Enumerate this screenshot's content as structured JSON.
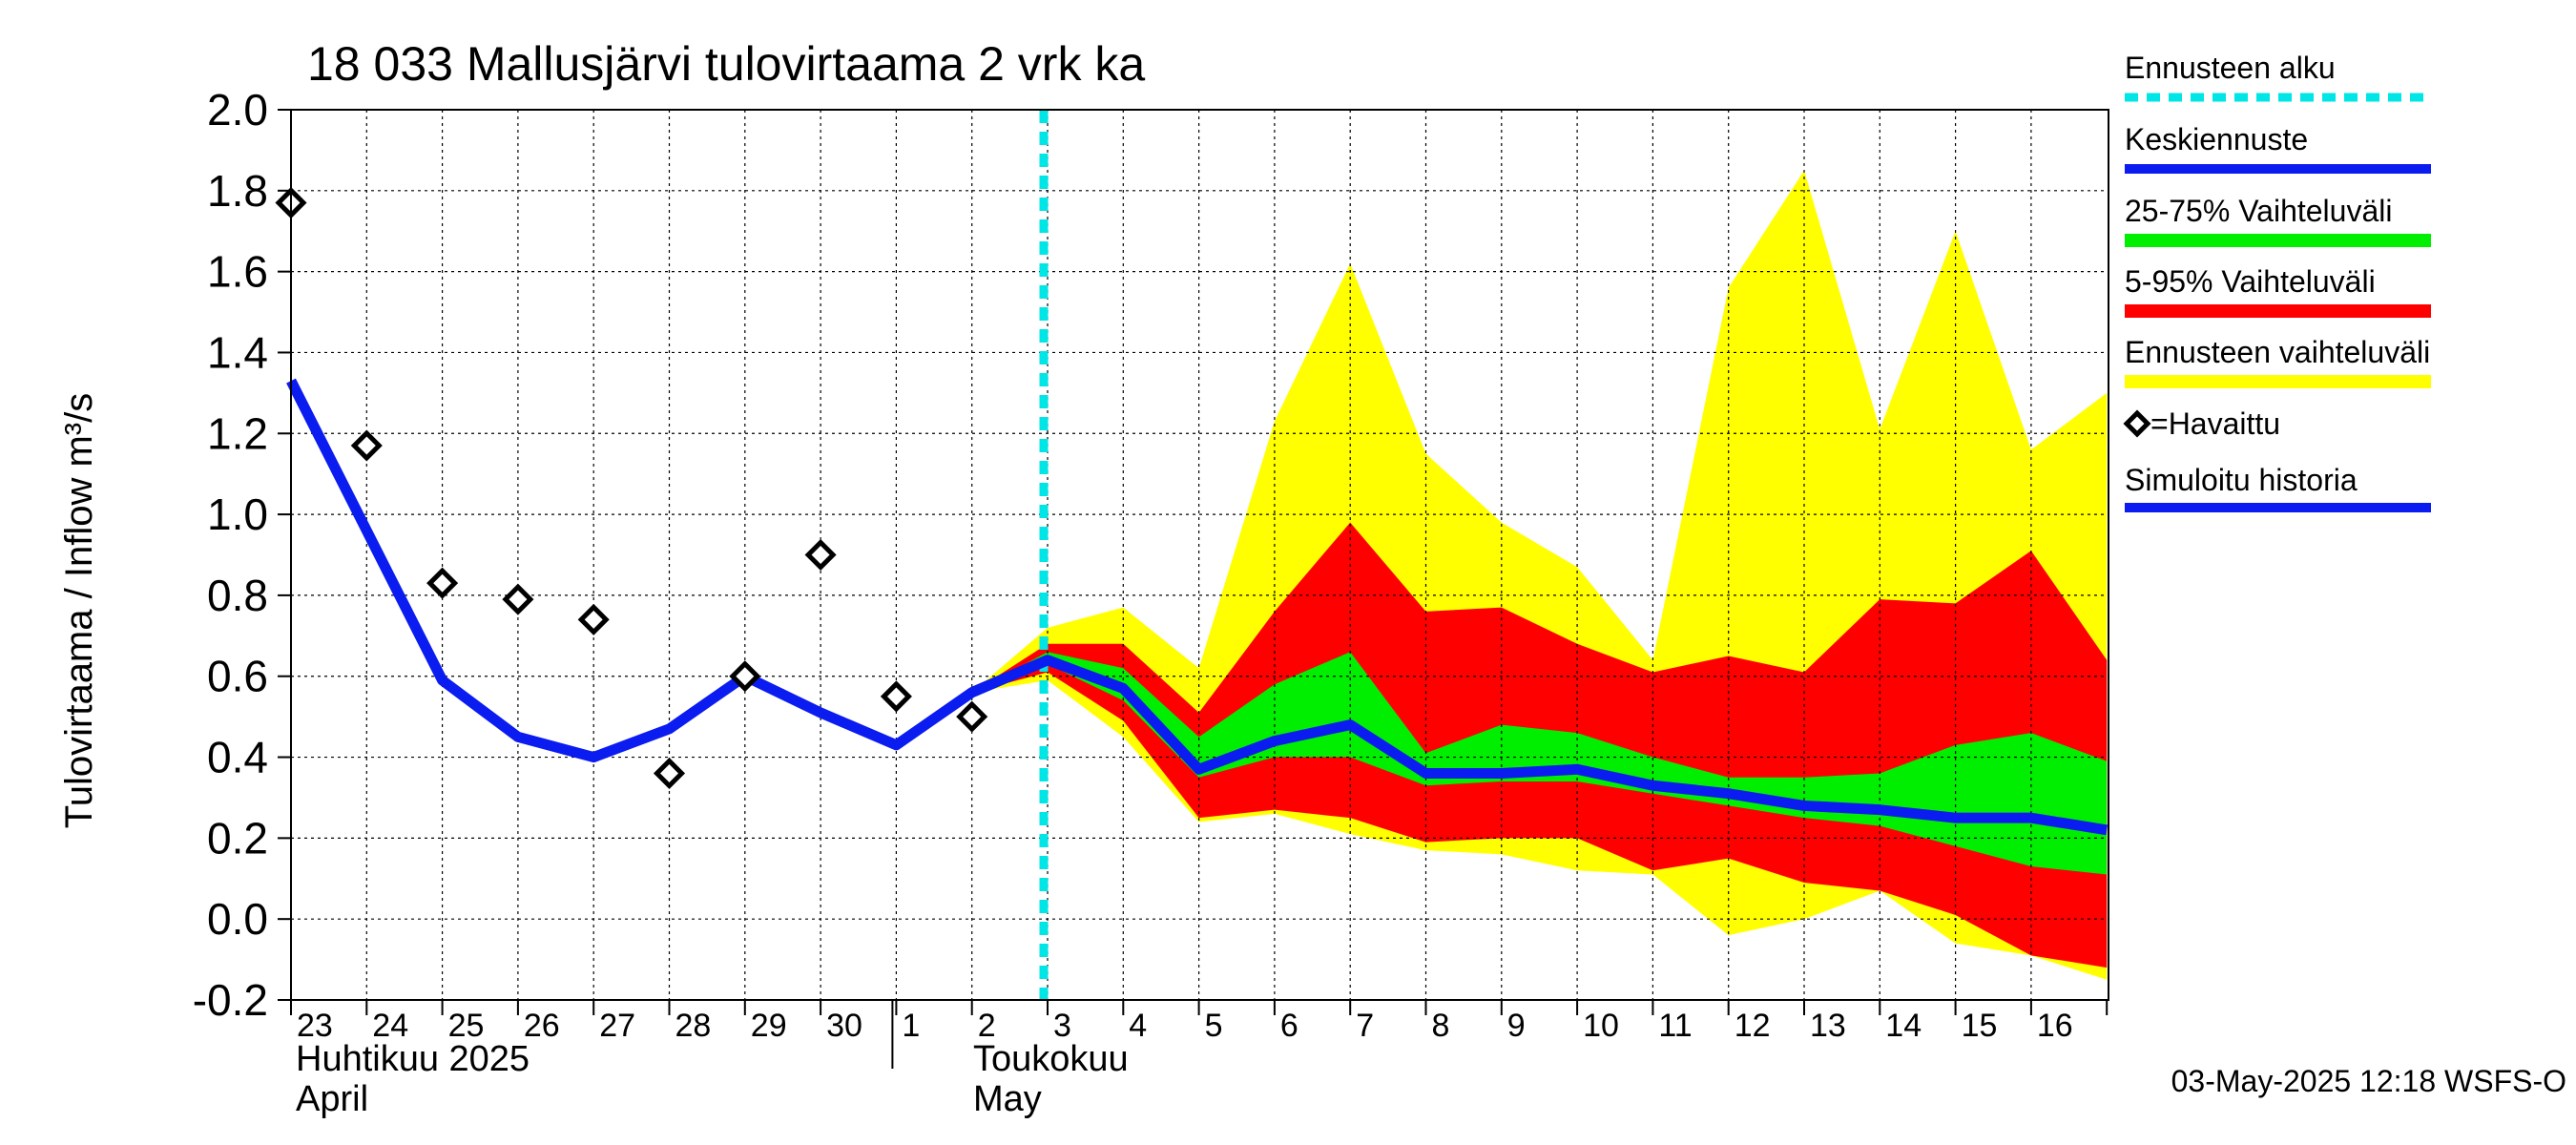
{
  "chart_data": {
    "type": "area",
    "title": "18 033 Mallusjärvi tulovirtaama 2 vrk ka",
    "ylabel": "Tulovirtaama / Inflow    m³/s",
    "ylim": [
      -0.2,
      2.0
    ],
    "yticks": [
      "-0.2",
      "0.0",
      "0.2",
      "0.4",
      "0.6",
      "0.8",
      "1.0",
      "1.2",
      "1.4",
      "1.6",
      "1.8",
      "2.0"
    ],
    "x_dates": [
      "23",
      "24",
      "25",
      "26",
      "27",
      "28",
      "29",
      "30",
      "1",
      "2",
      "3",
      "4",
      "5",
      "6",
      "7",
      "8",
      "9",
      "10",
      "11",
      "12",
      "13",
      "14",
      "15",
      "16"
    ],
    "month_labels": {
      "april_fi": "Huhtikuu  2025",
      "april_en": "April",
      "may_fi": "Toukokuu",
      "may_en": "May"
    },
    "forecast_start_x": 10,
    "grid": true,
    "legend": {
      "position": "right",
      "items": [
        {
          "label": "Ennusteen alku",
          "color": "#00e5e5",
          "style": "dashed"
        },
        {
          "label": "Keskiennuste",
          "color": "#0a1cf0",
          "style": "line"
        },
        {
          "label": "25-75% Vaihteluväli",
          "color": "#00ee00",
          "style": "band"
        },
        {
          "label": "5-95% Vaihteluväli",
          "color": "#ff0000",
          "style": "band"
        },
        {
          "label": "Ennusteen vaihteluväli",
          "color": "#ffff00",
          "style": "band"
        },
        {
          "label": "=Havaittu",
          "color": "#000000",
          "style": "marker"
        },
        {
          "label": "Simuloitu historia",
          "color": "#0a1cf0",
          "style": "line"
        }
      ]
    },
    "simulated_history": {
      "x": [
        0,
        1,
        2,
        3,
        4,
        5,
        6,
        7,
        8,
        9,
        10
      ],
      "y": [
        1.33,
        0.96,
        0.59,
        0.45,
        0.4,
        0.47,
        0.6,
        0.51,
        0.43,
        0.56,
        0.64
      ]
    },
    "observed": {
      "x": [
        0,
        1,
        2,
        3,
        4,
        5,
        6,
        7,
        8,
        9
      ],
      "y": [
        1.77,
        1.17,
        0.83,
        0.79,
        0.74,
        0.36,
        0.6,
        0.9,
        0.55,
        0.5
      ]
    },
    "forecast_x": [
      9,
      10,
      11,
      12,
      13,
      14,
      15,
      16,
      17,
      18,
      19,
      20,
      21,
      22,
      23,
      24
    ],
    "forecast_median": [
      0.56,
      0.64,
      0.57,
      0.37,
      0.44,
      0.48,
      0.36,
      0.36,
      0.37,
      0.33,
      0.31,
      0.28,
      0.27,
      0.25,
      0.25,
      0.22
    ],
    "band_25_75": {
      "low": [
        0.56,
        0.63,
        0.54,
        0.35,
        0.4,
        0.4,
        0.33,
        0.34,
        0.34,
        0.31,
        0.28,
        0.25,
        0.23,
        0.18,
        0.13,
        0.11
      ],
      "high": [
        0.56,
        0.66,
        0.62,
        0.45,
        0.58,
        0.66,
        0.41,
        0.48,
        0.46,
        0.4,
        0.35,
        0.35,
        0.36,
        0.43,
        0.46,
        0.39
      ]
    },
    "band_5_95": {
      "low": [
        0.56,
        0.61,
        0.49,
        0.25,
        0.27,
        0.25,
        0.19,
        0.2,
        0.2,
        0.12,
        0.15,
        0.09,
        0.07,
        0.01,
        -0.09,
        -0.12
      ],
      "high": [
        0.56,
        0.68,
        0.68,
        0.51,
        0.76,
        0.98,
        0.76,
        0.77,
        0.68,
        0.61,
        0.65,
        0.61,
        0.79,
        0.78,
        0.91,
        0.64
      ]
    },
    "band_full": {
      "low": [
        0.56,
        0.59,
        0.45,
        0.24,
        0.26,
        0.21,
        0.17,
        0.16,
        0.12,
        0.11,
        -0.04,
        0.0,
        0.07,
        -0.06,
        -0.09,
        -0.15
      ],
      "high": [
        0.56,
        0.72,
        0.77,
        0.62,
        1.23,
        1.62,
        1.15,
        0.98,
        0.87,
        0.64,
        1.56,
        1.85,
        1.21,
        1.7,
        1.16,
        1.3
      ]
    }
  },
  "footer": {
    "timestamp": "03-May-2025 12:18 WSFS-O"
  }
}
